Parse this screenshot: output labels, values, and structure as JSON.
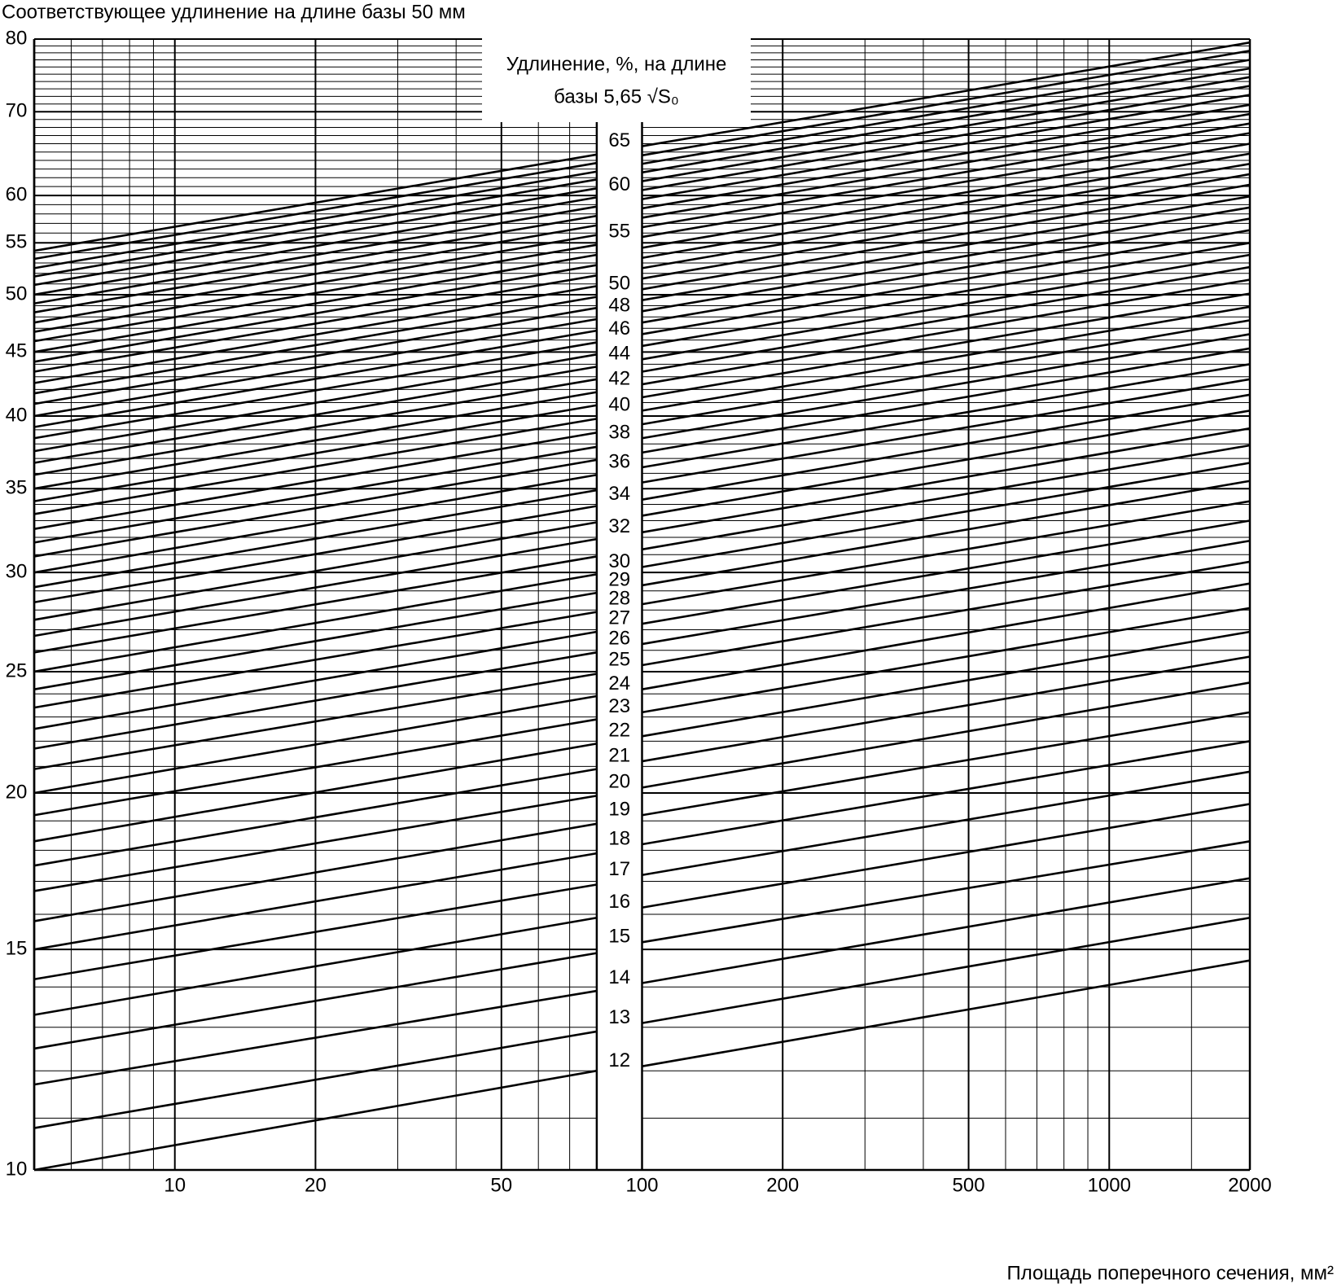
{
  "chart_data": {
    "type": "line",
    "ylabel": "Соответствующее удлинение на длине базы 50 мм",
    "xlabel": "Площадь поперечного сечения, мм²",
    "annotation": [
      "Удлинение, %, на длине",
      "базы 5,65 √S₀"
    ],
    "xscale": "log",
    "yscale": "log",
    "grid": true,
    "color": "#000000",
    "xlim": [
      5,
      2000
    ],
    "ylim": [
      10,
      80
    ],
    "xpanels": [
      [
        5,
        80
      ],
      [
        100,
        2000
      ]
    ],
    "xticks": [
      10,
      20,
      50,
      100,
      200,
      500,
      1000,
      2000
    ],
    "xminorticks": [
      6,
      7,
      8,
      9,
      30,
      40,
      60,
      70,
      80,
      300,
      400,
      600,
      700,
      800,
      900,
      1500
    ],
    "yticks": [
      10,
      15,
      20,
      25,
      30,
      35,
      40,
      45,
      50,
      55,
      60,
      70,
      80
    ],
    "yminorticks": [
      11,
      12,
      13,
      14,
      16,
      17,
      18,
      19,
      21,
      22,
      23,
      24,
      26,
      27,
      28,
      29,
      31,
      32,
      33,
      34,
      36,
      37,
      38,
      39,
      41,
      42,
      43,
      44,
      46,
      47,
      48,
      49,
      51,
      52,
      53,
      54,
      56,
      57,
      58,
      59,
      61,
      62,
      63,
      64,
      65,
      66,
      67,
      68,
      69,
      71,
      72,
      73,
      74,
      75,
      76,
      77,
      78,
      79
    ],
    "x": [
      5,
      80,
      100,
      2000
    ],
    "series": [
      {
        "name": "12",
        "values": [
          10.0,
          12.0,
          12.1,
          14.7
        ]
      },
      {
        "name": "13",
        "values": [
          10.8,
          12.9,
          13.1,
          15.9
        ]
      },
      {
        "name": "14",
        "values": [
          11.7,
          13.9,
          14.1,
          17.1
        ]
      },
      {
        "name": "15",
        "values": [
          12.5,
          14.9,
          15.2,
          18.3
        ]
      },
      {
        "name": "16",
        "values": [
          13.3,
          15.9,
          16.2,
          19.6
        ]
      },
      {
        "name": "17",
        "values": [
          14.2,
          16.9,
          17.2,
          20.8
        ]
      },
      {
        "name": "18",
        "values": [
          15.0,
          17.9,
          18.2,
          22.0
        ]
      },
      {
        "name": "19",
        "values": [
          15.8,
          18.9,
          19.2,
          23.2
        ]
      },
      {
        "name": "20",
        "values": [
          16.7,
          19.9,
          20.2,
          24.5
        ]
      },
      {
        "name": "21",
        "values": [
          17.5,
          20.9,
          21.2,
          25.7
        ]
      },
      {
        "name": "22",
        "values": [
          18.3,
          21.9,
          22.2,
          26.9
        ]
      },
      {
        "name": "23",
        "values": [
          19.2,
          22.9,
          23.2,
          28.1
        ]
      },
      {
        "name": "24",
        "values": [
          20.0,
          23.9,
          24.2,
          29.4
        ]
      },
      {
        "name": "25",
        "values": [
          20.9,
          24.9,
          25.3,
          30.6
        ]
      },
      {
        "name": "26",
        "values": [
          21.7,
          25.9,
          26.3,
          31.8
        ]
      },
      {
        "name": "27",
        "values": [
          22.5,
          26.9,
          27.3,
          33.0
        ]
      },
      {
        "name": "28",
        "values": [
          23.4,
          27.9,
          28.3,
          34.2
        ]
      },
      {
        "name": "29",
        "values": [
          24.2,
          28.9,
          29.3,
          35.5
        ]
      },
      {
        "name": "30",
        "values": [
          25.0,
          29.9,
          30.3,
          36.7
        ]
      },
      {
        "values": [
          25.9,
          30.9,
          31.3,
          37.9
        ]
      },
      {
        "name": "32",
        "values": [
          26.7,
          31.9,
          32.3,
          39.1
        ]
      },
      {
        "values": [
          27.5,
          32.9,
          33.3,
          40.4
        ]
      },
      {
        "name": "34",
        "values": [
          28.4,
          33.9,
          34.3,
          41.6
        ]
      },
      {
        "values": [
          29.2,
          34.9,
          35.4,
          42.8
        ]
      },
      {
        "name": "36",
        "values": [
          30.0,
          35.9,
          36.4,
          44.0
        ]
      },
      {
        "values": [
          30.9,
          36.9,
          37.4,
          45.3
        ]
      },
      {
        "name": "38",
        "values": [
          31.7,
          37.8,
          38.4,
          46.5
        ]
      },
      {
        "values": [
          32.5,
          38.8,
          39.4,
          47.7
        ]
      },
      {
        "name": "40",
        "values": [
          33.4,
          39.8,
          40.4,
          48.9
        ]
      },
      {
        "values": [
          34.2,
          40.8,
          41.4,
          50.1
        ]
      },
      {
        "name": "42",
        "values": [
          35.0,
          41.8,
          42.4,
          51.4
        ]
      },
      {
        "values": [
          35.9,
          42.8,
          43.4,
          52.6
        ]
      },
      {
        "name": "44",
        "values": [
          36.7,
          43.8,
          44.4,
          53.8
        ]
      },
      {
        "values": [
          37.5,
          44.8,
          45.5,
          55.0
        ]
      },
      {
        "name": "46",
        "values": [
          38.4,
          45.8,
          46.5,
          56.3
        ]
      },
      {
        "values": [
          39.2,
          46.8,
          47.5,
          57.5
        ]
      },
      {
        "name": "48",
        "values": [
          40.0,
          47.8,
          48.5,
          58.7
        ]
      },
      {
        "values": [
          40.9,
          48.8,
          49.5,
          59.9
        ]
      },
      {
        "name": "50",
        "values": [
          41.7,
          49.8,
          50.5,
          61.2
        ]
      },
      {
        "values": [
          42.5,
          50.8,
          51.5,
          62.4
        ]
      },
      {
        "values": [
          43.4,
          51.8,
          52.5,
          63.6
        ]
      },
      {
        "values": [
          44.2,
          52.8,
          53.5,
          64.8
        ]
      },
      {
        "values": [
          45.0,
          53.8,
          54.5,
          66.0
        ]
      },
      {
        "name": "55",
        "values": [
          45.9,
          54.8,
          55.6,
          67.3
        ]
      },
      {
        "values": [
          46.7,
          55.8,
          56.6,
          68.5
        ]
      },
      {
        "values": [
          47.5,
          56.8,
          57.6,
          69.7
        ]
      },
      {
        "values": [
          48.4,
          57.8,
          58.6,
          70.9
        ]
      },
      {
        "values": [
          49.2,
          58.8,
          59.6,
          72.2
        ]
      },
      {
        "name": "60",
        "values": [
          50.0,
          59.8,
          60.6,
          73.4
        ]
      },
      {
        "values": [
          50.9,
          60.8,
          61.6,
          74.6
        ]
      },
      {
        "values": [
          51.7,
          61.8,
          62.6,
          75.8
        ]
      },
      {
        "values": [
          52.5,
          62.7,
          63.6,
          77.0
        ]
      },
      {
        "values": [
          53.4,
          63.7,
          64.6,
          78.3
        ]
      },
      {
        "name": "65",
        "values": [
          54.2,
          64.7,
          65.7,
          79.5
        ]
      }
    ]
  }
}
